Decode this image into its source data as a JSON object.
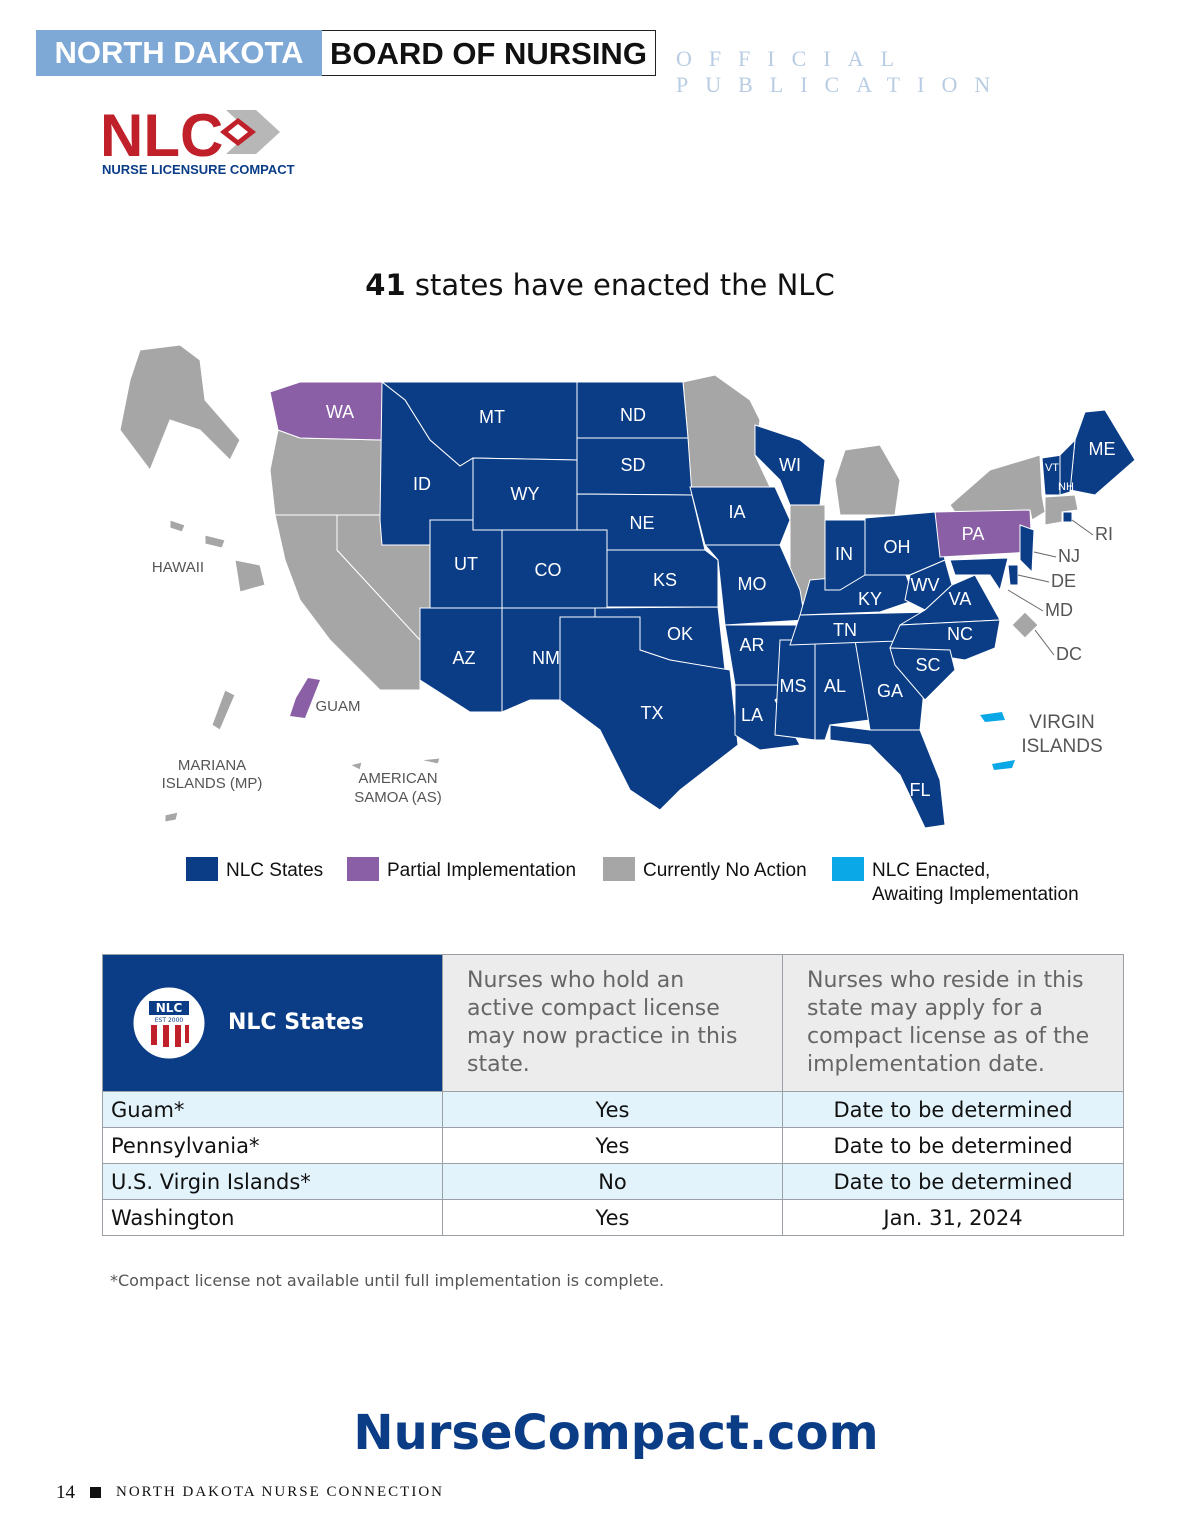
{
  "header": {
    "state": "NORTH DAKOTA",
    "board": "BOARD OF NURSING",
    "tagline": "OFFICIAL PUBLICATION"
  },
  "logo": {
    "mark": "NLC",
    "name": "NURSE LICENSURE COMPACT"
  },
  "title": {
    "count": 41,
    "text": "states have enacted the NLC"
  },
  "map": {
    "states": [
      {
        "label": "WA",
        "color": "#8a5fa5"
      },
      {
        "label": "MT",
        "color": "#0b3d87"
      },
      {
        "label": "ND",
        "color": "#0b3d87"
      },
      {
        "label": "SD",
        "color": "#0b3d87"
      },
      {
        "label": "ID",
        "color": "#0b3d87"
      },
      {
        "label": "WY",
        "color": "#0b3d87"
      },
      {
        "label": "NE",
        "color": "#0b3d87"
      },
      {
        "label": "UT",
        "color": "#0b3d87"
      },
      {
        "label": "CO",
        "color": "#0b3d87"
      },
      {
        "label": "KS",
        "color": "#0b3d87"
      },
      {
        "label": "AZ",
        "color": "#0b3d87"
      },
      {
        "label": "NM",
        "color": "#0b3d87"
      },
      {
        "label": "OK",
        "color": "#0b3d87"
      },
      {
        "label": "TX",
        "color": "#0b3d87"
      },
      {
        "label": "IA",
        "color": "#0b3d87"
      },
      {
        "label": "MO",
        "color": "#0b3d87"
      },
      {
        "label": "AR",
        "color": "#0b3d87"
      },
      {
        "label": "LA",
        "color": "#0b3d87"
      },
      {
        "label": "MS",
        "color": "#0b3d87"
      },
      {
        "label": "AL",
        "color": "#0b3d87"
      },
      {
        "label": "GA",
        "color": "#0b3d87"
      },
      {
        "label": "FL",
        "color": "#0b3d87"
      },
      {
        "label": "TN",
        "color": "#0b3d87"
      },
      {
        "label": "KY",
        "color": "#0b3d87"
      },
      {
        "label": "IN",
        "color": "#0b3d87"
      },
      {
        "label": "OH",
        "color": "#0b3d87"
      },
      {
        "label": "WV",
        "color": "#0b3d87"
      },
      {
        "label": "VA",
        "color": "#0b3d87"
      },
      {
        "label": "NC",
        "color": "#0b3d87"
      },
      {
        "label": "SC",
        "color": "#0b3d87"
      },
      {
        "label": "WI",
        "color": "#0b3d87"
      },
      {
        "label": "PA",
        "color": "#8a5fa5"
      },
      {
        "label": "NJ",
        "color": "#0b3d87"
      },
      {
        "label": "DE",
        "color": "#0b3d87"
      },
      {
        "label": "MD",
        "color": "#0b3d87"
      },
      {
        "label": "DC",
        "color": "#a6a6a6"
      },
      {
        "label": "RI",
        "color": "#0b3d87"
      },
      {
        "label": "ME",
        "color": "#0b3d87"
      },
      {
        "label": "VT",
        "color": "#0b3d87"
      },
      {
        "label": "NH",
        "color": "#0b3d87"
      }
    ],
    "territories": {
      "hawaii": "HAWAII",
      "guam": "GUAM",
      "mariana": [
        "MARIANA",
        "ISLANDS (MP)"
      ],
      "samoa": [
        "AMERICAN",
        "SAMOA (AS)"
      ],
      "virgin": [
        "VIRGIN",
        "ISLANDS"
      ]
    }
  },
  "legend": [
    {
      "lines": [
        "NLC States"
      ],
      "color": "#0b3d87"
    },
    {
      "lines": [
        "Partial Implementation"
      ],
      "color": "#8a5fa5"
    },
    {
      "lines": [
        "Currently No Action"
      ],
      "color": "#a6a6a6"
    },
    {
      "lines": [
        "NLC Enacted,",
        "Awaiting Implementation"
      ],
      "color": "#0aa8e6"
    }
  ],
  "table": {
    "seal": {
      "mark": "NLC",
      "est": "EST 2000"
    },
    "headers": [
      "NLC States",
      "Nurses who hold an active compact license may now practice in this state.",
      "Nurses who reside in this state may apply for a compact license as of the implementation date."
    ],
    "rows": [
      [
        "Guam*",
        "Yes",
        "Date to be determined"
      ],
      [
        "Pennsylvania*",
        "Yes",
        "Date to be determined"
      ],
      [
        "U.S. Virgin Islands*",
        "No",
        "Date to be determined"
      ],
      [
        "Washington",
        "Yes",
        "Jan. 31, 2024"
      ]
    ],
    "footnote": "*Compact license not available until full implementation is complete."
  },
  "url": "NurseCompact.com",
  "footer": {
    "page": 14,
    "publication": "NORTH DAKOTA NURSE CONNECTION"
  }
}
